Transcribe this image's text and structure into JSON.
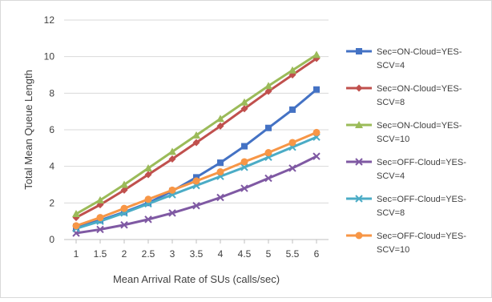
{
  "chart_data": {
    "type": "line",
    "title": "",
    "xlabel": "Mean Arrival Rate of SUs (calls/sec)",
    "ylabel": "Total Mean Queue Length",
    "x": [
      "1",
      "1.5",
      "2",
      "2.5",
      "3",
      "3.5",
      "4",
      "4.5",
      "5",
      "5.5",
      "6"
    ],
    "yticks": [
      "0",
      "2",
      "4",
      "6",
      "8",
      "10",
      "12"
    ],
    "ylim": [
      0,
      12
    ],
    "grid": "horizontal",
    "legend_position": "right",
    "series": [
      {
        "name": "Sec=ON-Cloud=YES-SCV=4",
        "name_lines": [
          "Sec=ON-Cloud=YES-",
          "SCV=4"
        ],
        "color": "#4472C4",
        "marker": "square",
        "values": [
          0.7,
          1.05,
          1.5,
          2.0,
          2.65,
          3.4,
          4.2,
          5.1,
          6.1,
          7.1,
          8.2
        ]
      },
      {
        "name": "Sec=ON-Cloud=YES-SCV=8",
        "name_lines": [
          "Sec=ON-Cloud=YES-",
          "SCV=8"
        ],
        "color": "#C0504D",
        "marker": "diamond",
        "values": [
          1.2,
          1.9,
          2.7,
          3.55,
          4.4,
          5.3,
          6.2,
          7.15,
          8.1,
          9.0,
          9.9
        ]
      },
      {
        "name": "Sec=ON-Cloud=YES-SCV=10",
        "name_lines": [
          "Sec=ON-Cloud=YES-",
          "SCV=10"
        ],
        "color": "#9BBB59",
        "marker": "triangle",
        "values": [
          1.4,
          2.15,
          3.0,
          3.9,
          4.8,
          5.7,
          6.6,
          7.5,
          8.4,
          9.25,
          10.1
        ]
      },
      {
        "name": "Sec=OFF-Cloud=YES-SCV=4",
        "name_lines": [
          "Sec=OFF-Cloud=YES-",
          "SCV=4"
        ],
        "color": "#7F59A3",
        "marker": "x",
        "values": [
          0.35,
          0.55,
          0.8,
          1.1,
          1.45,
          1.85,
          2.3,
          2.8,
          3.35,
          3.9,
          4.55
        ]
      },
      {
        "name": "Sec=OFF-Cloud=YES-SCV=8",
        "name_lines": [
          "Sec=OFF-Cloud=YES-",
          "SCV=8"
        ],
        "color": "#4BACC6",
        "marker": "x",
        "values": [
          0.6,
          1.0,
          1.45,
          1.95,
          2.45,
          2.95,
          3.45,
          3.95,
          4.5,
          5.05,
          5.6
        ]
      },
      {
        "name": "Sec=OFF-Cloud=YES-SCV=10",
        "name_lines": [
          "Sec=OFF-Cloud=YES-",
          "SCV=10"
        ],
        "color": "#F79646",
        "marker": "circle",
        "values": [
          0.75,
          1.2,
          1.7,
          2.2,
          2.7,
          3.2,
          3.7,
          4.25,
          4.75,
          5.3,
          5.85
        ]
      }
    ]
  }
}
